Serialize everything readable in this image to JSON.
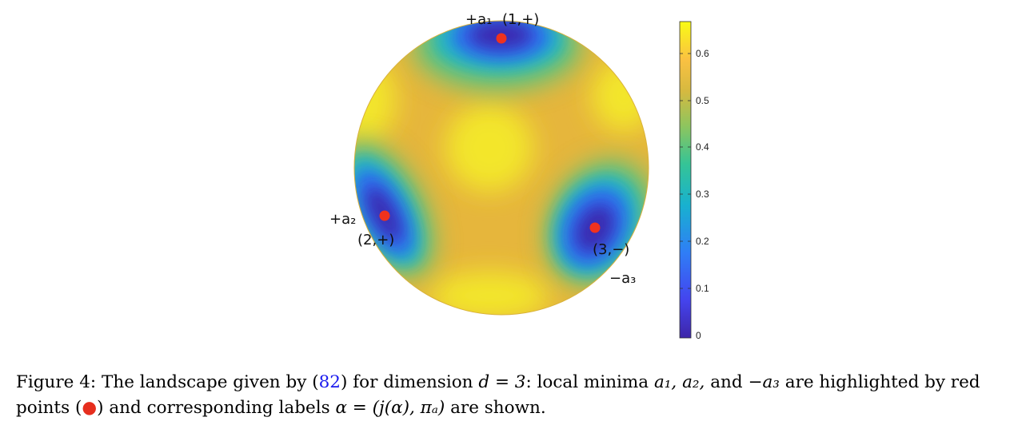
{
  "figure": {
    "colorbar": {
      "ticks": [
        "0.6",
        "0.5",
        "0.4",
        "0.3",
        "0.2",
        "0.1",
        "0"
      ],
      "range": [
        0,
        0.66
      ],
      "colormap": [
        "#3e26a8",
        "#4444ee",
        "#2f7ef6",
        "#18b1cf",
        "#35c496",
        "#8ec55e",
        "#d6b940",
        "#fac142",
        "#f9fb15"
      ]
    },
    "minima": [
      {
        "label": "+a₁",
        "alpha": "(1,+)"
      },
      {
        "label": "+a₂",
        "alpha": "(2,+)"
      },
      {
        "label": "−a₃",
        "alpha": "(3,−)"
      }
    ],
    "marker_color": "#f0321e"
  },
  "caption": {
    "figure_label": "Figure 4:",
    "text1": "The landscape given by (",
    "equation_ref": "82",
    "text2": ") for dimension ",
    "d_eq": "d = 3",
    "text3": ": local minima ",
    "minima_list": "a₁, a₂,",
    "text4": " and ",
    "neg_a3": "−a₃",
    "text5": " are highlighted by red points (",
    "dot": "●",
    "text6": ") and corresponding labels ",
    "alpha_eq": "α = (j(α), πₐ)",
    "text7": " are shown."
  }
}
